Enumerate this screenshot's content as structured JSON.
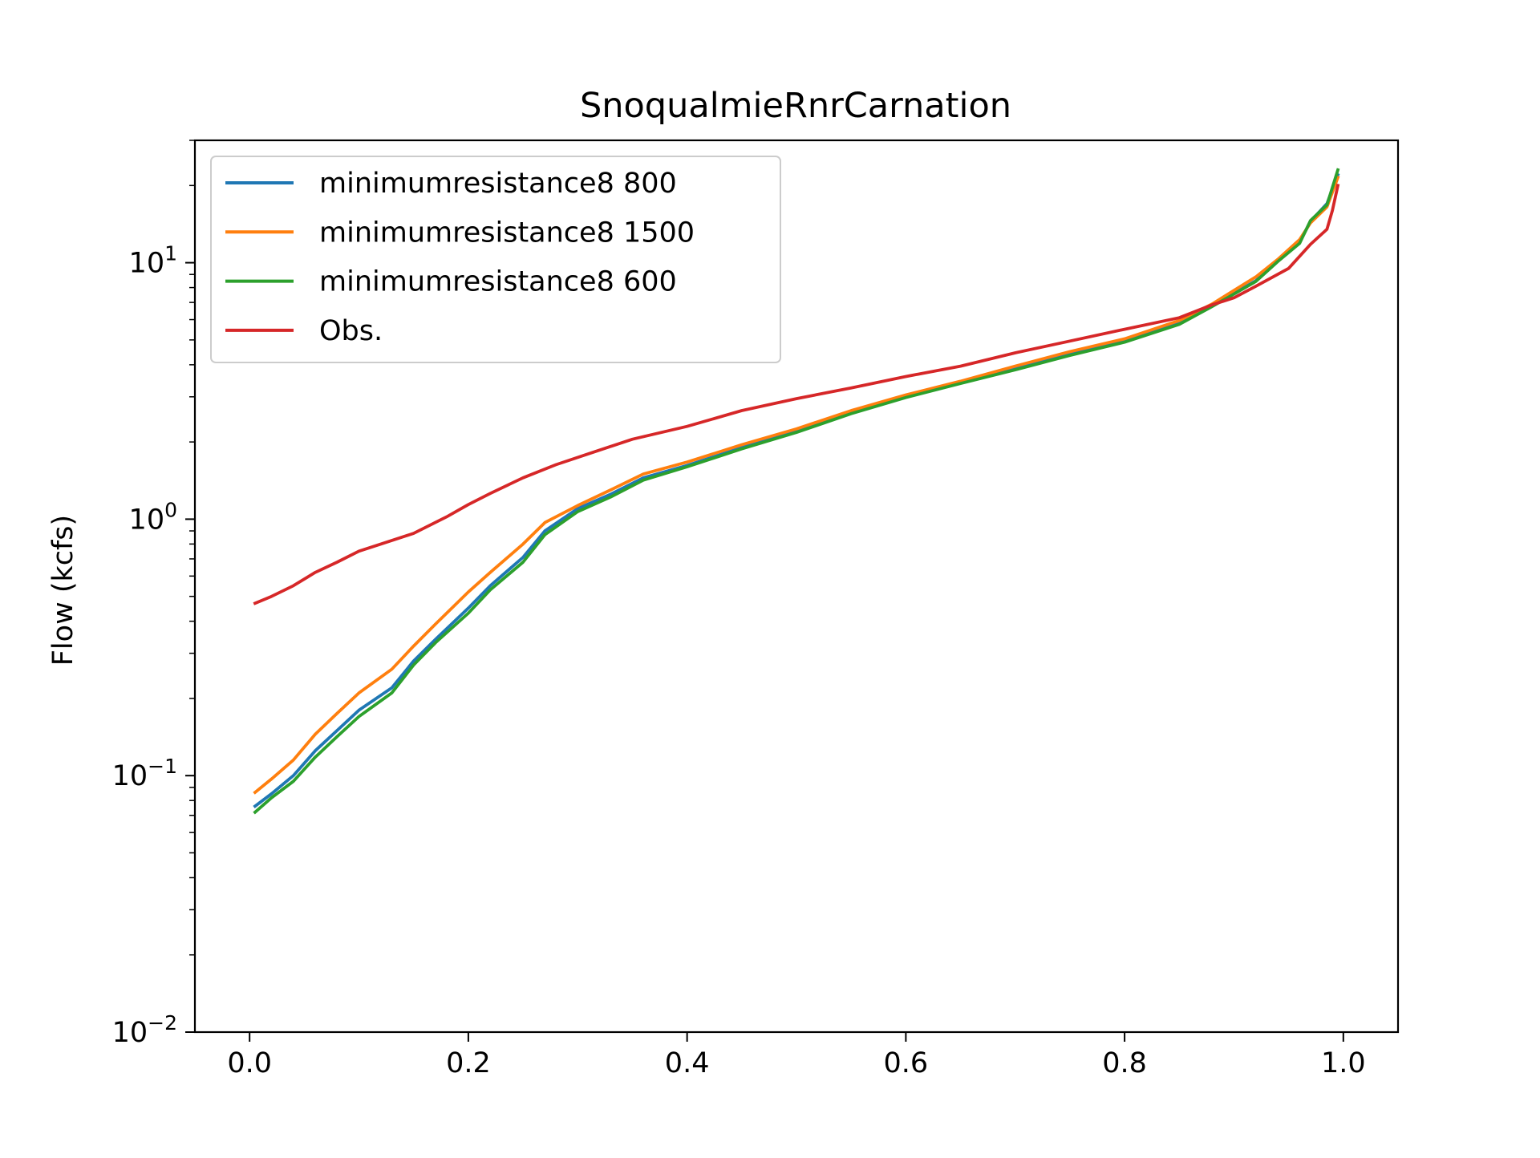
{
  "chart_data": {
    "type": "line",
    "title": "SnoqualmieRnrCarnation",
    "xlabel": "",
    "ylabel": "Flow (kcfs)",
    "xlim": [
      -0.05,
      1.05
    ],
    "ylim": [
      0.01,
      30
    ],
    "yscale": "log",
    "xticks": [
      0.0,
      0.2,
      0.4,
      0.6,
      0.8,
      1.0
    ],
    "xtick_labels": [
      "0.0",
      "0.2",
      "0.4",
      "0.6",
      "0.8",
      "1.0"
    ],
    "yticks": [
      {
        "value": 10,
        "base": "10",
        "exp": "1"
      },
      {
        "value": 1,
        "base": "10",
        "exp": "0"
      },
      {
        "value": 0.1,
        "base": "10",
        "exp": "−1"
      },
      {
        "value": 0.01,
        "base": "10",
        "exp": "−2"
      }
    ],
    "grid": false,
    "legend_position": "upper-left",
    "series": [
      {
        "name": "minimumresistance8 800",
        "color": "#1f77b4",
        "points": [
          [
            0.005,
            0.076
          ],
          [
            0.02,
            0.085
          ],
          [
            0.04,
            0.1
          ],
          [
            0.06,
            0.125
          ],
          [
            0.08,
            0.15
          ],
          [
            0.1,
            0.18
          ],
          [
            0.13,
            0.22
          ],
          [
            0.15,
            0.28
          ],
          [
            0.17,
            0.34
          ],
          [
            0.2,
            0.45
          ],
          [
            0.22,
            0.55
          ],
          [
            0.25,
            0.71
          ],
          [
            0.27,
            0.9
          ],
          [
            0.3,
            1.1
          ],
          [
            0.33,
            1.25
          ],
          [
            0.36,
            1.45
          ],
          [
            0.4,
            1.62
          ],
          [
            0.45,
            1.9
          ],
          [
            0.5,
            2.2
          ],
          [
            0.55,
            2.6
          ],
          [
            0.6,
            3.0
          ],
          [
            0.65,
            3.4
          ],
          [
            0.7,
            3.85
          ],
          [
            0.75,
            4.4
          ],
          [
            0.8,
            4.95
          ],
          [
            0.85,
            5.8
          ],
          [
            0.88,
            6.8
          ],
          [
            0.9,
            7.6
          ],
          [
            0.92,
            8.5
          ],
          [
            0.94,
            10.2
          ],
          [
            0.96,
            12.0
          ],
          [
            0.97,
            14.5
          ],
          [
            0.985,
            17.0
          ],
          [
            0.995,
            22.0
          ]
        ]
      },
      {
        "name": "minimumresistance8 1500",
        "color": "#ff7f0e",
        "points": [
          [
            0.005,
            0.086
          ],
          [
            0.02,
            0.097
          ],
          [
            0.04,
            0.115
          ],
          [
            0.06,
            0.145
          ],
          [
            0.08,
            0.175
          ],
          [
            0.1,
            0.21
          ],
          [
            0.13,
            0.26
          ],
          [
            0.15,
            0.32
          ],
          [
            0.17,
            0.39
          ],
          [
            0.2,
            0.52
          ],
          [
            0.22,
            0.62
          ],
          [
            0.25,
            0.8
          ],
          [
            0.27,
            0.97
          ],
          [
            0.3,
            1.13
          ],
          [
            0.33,
            1.3
          ],
          [
            0.36,
            1.5
          ],
          [
            0.4,
            1.67
          ],
          [
            0.45,
            1.95
          ],
          [
            0.5,
            2.25
          ],
          [
            0.55,
            2.65
          ],
          [
            0.6,
            3.05
          ],
          [
            0.65,
            3.45
          ],
          [
            0.7,
            3.95
          ],
          [
            0.75,
            4.5
          ],
          [
            0.8,
            5.05
          ],
          [
            0.85,
            5.95
          ],
          [
            0.88,
            6.9
          ],
          [
            0.9,
            7.8
          ],
          [
            0.92,
            8.8
          ],
          [
            0.94,
            10.3
          ],
          [
            0.96,
            12.3
          ],
          [
            0.97,
            14.3
          ],
          [
            0.985,
            16.5
          ],
          [
            0.995,
            21.5
          ]
        ]
      },
      {
        "name": "minimumresistance8 600",
        "color": "#2ca02c",
        "points": [
          [
            0.005,
            0.072
          ],
          [
            0.02,
            0.082
          ],
          [
            0.04,
            0.095
          ],
          [
            0.06,
            0.118
          ],
          [
            0.08,
            0.142
          ],
          [
            0.1,
            0.17
          ],
          [
            0.13,
            0.21
          ],
          [
            0.15,
            0.27
          ],
          [
            0.17,
            0.33
          ],
          [
            0.2,
            0.43
          ],
          [
            0.22,
            0.53
          ],
          [
            0.25,
            0.68
          ],
          [
            0.27,
            0.87
          ],
          [
            0.3,
            1.07
          ],
          [
            0.33,
            1.22
          ],
          [
            0.36,
            1.42
          ],
          [
            0.4,
            1.6
          ],
          [
            0.45,
            1.88
          ],
          [
            0.5,
            2.18
          ],
          [
            0.55,
            2.58
          ],
          [
            0.6,
            2.98
          ],
          [
            0.65,
            3.38
          ],
          [
            0.7,
            3.82
          ],
          [
            0.75,
            4.35
          ],
          [
            0.8,
            4.9
          ],
          [
            0.85,
            5.75
          ],
          [
            0.88,
            6.75
          ],
          [
            0.9,
            7.55
          ],
          [
            0.92,
            8.45
          ],
          [
            0.94,
            10.1
          ],
          [
            0.96,
            11.9
          ],
          [
            0.97,
            14.6
          ],
          [
            0.985,
            16.8
          ],
          [
            0.995,
            23.0
          ]
        ]
      },
      {
        "name": "Obs.",
        "color": "#d62728",
        "points": [
          [
            0.005,
            0.47
          ],
          [
            0.02,
            0.5
          ],
          [
            0.04,
            0.55
          ],
          [
            0.06,
            0.62
          ],
          [
            0.08,
            0.68
          ],
          [
            0.1,
            0.75
          ],
          [
            0.12,
            0.8
          ],
          [
            0.15,
            0.88
          ],
          [
            0.18,
            1.02
          ],
          [
            0.2,
            1.14
          ],
          [
            0.22,
            1.26
          ],
          [
            0.25,
            1.45
          ],
          [
            0.28,
            1.63
          ],
          [
            0.31,
            1.8
          ],
          [
            0.35,
            2.05
          ],
          [
            0.4,
            2.3
          ],
          [
            0.45,
            2.65
          ],
          [
            0.5,
            2.95
          ],
          [
            0.55,
            3.25
          ],
          [
            0.6,
            3.6
          ],
          [
            0.65,
            3.95
          ],
          [
            0.7,
            4.45
          ],
          [
            0.75,
            4.95
          ],
          [
            0.8,
            5.5
          ],
          [
            0.85,
            6.1
          ],
          [
            0.88,
            6.85
          ],
          [
            0.9,
            7.3
          ],
          [
            0.92,
            8.1
          ],
          [
            0.95,
            9.5
          ],
          [
            0.97,
            11.8
          ],
          [
            0.985,
            13.5
          ],
          [
            0.99,
            16.0
          ],
          [
            0.995,
            20.0
          ]
        ]
      }
    ]
  }
}
